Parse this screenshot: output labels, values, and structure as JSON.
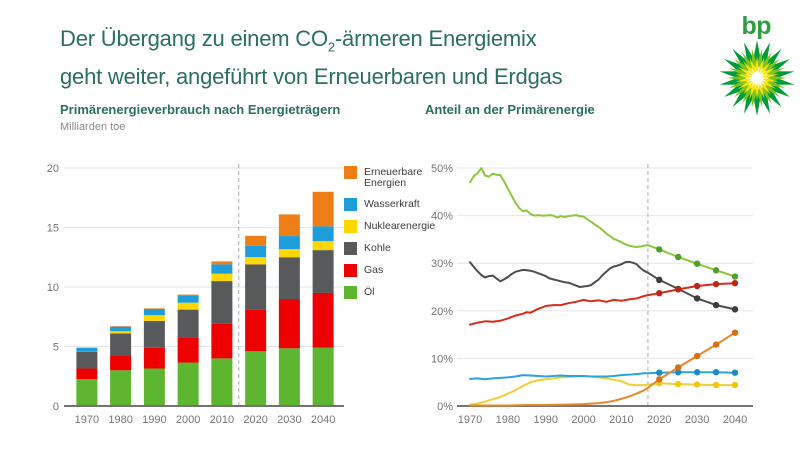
{
  "header": {
    "title_l1a": "Der Übergang zu einem CO",
    "title_sub": "2",
    "title_l1b": "-ärmeren Energiemix",
    "title_l2": "geht weiter, angeführt von Erneuerbaren und Erdgas"
  },
  "logo": {
    "wordmark": "bp",
    "colors": [
      "#009b3a",
      "#7fc31c",
      "#ffe400",
      "#ffffff"
    ]
  },
  "left_panel": {
    "title": "Primärenergieverbrauch nach Energieträgern",
    "unit": "Milliarden toe"
  },
  "right_panel": {
    "title": "Anteil an der Primärenergie"
  },
  "colors": {
    "title_teal": "#2b6e62",
    "axis_text": "#767676",
    "grid": "#e6e6e6",
    "baseline": "#737373",
    "divider": "#adadad",
    "legend_text": "#3d3d3d"
  },
  "chart_data": [
    {
      "type": "bar",
      "variant": "stacked",
      "title": "Primärenergieverbrauch nach Energieträgern",
      "ylabel": "Milliarden toe",
      "categories": [
        1970,
        1980,
        1990,
        2000,
        2010,
        2020,
        2030,
        2040
      ],
      "ylim": [
        0,
        20
      ],
      "yticks": [
        0,
        5,
        10,
        15,
        20
      ],
      "divider_x": 2015,
      "grid": true,
      "legend_position": "right",
      "series": [
        {
          "name": "Öl",
          "color": "#5eb52f",
          "values": [
            2.25,
            3.0,
            3.15,
            3.65,
            4.0,
            4.6,
            4.85,
            4.9
          ]
        },
        {
          "name": "Gas",
          "color": "#ee0000",
          "values": [
            0.9,
            1.25,
            1.75,
            2.1,
            2.9,
            3.5,
            4.1,
            4.6
          ]
        },
        {
          "name": "Kohle",
          "color": "#58595b",
          "values": [
            1.45,
            1.85,
            2.25,
            2.35,
            3.6,
            3.8,
            3.55,
            3.6
          ]
        },
        {
          "name": "Nuklearenergie",
          "color": "#ffd700",
          "values": [
            0.02,
            0.18,
            0.48,
            0.58,
            0.62,
            0.62,
            0.68,
            0.75
          ]
        },
        {
          "name": "Wasserkraft",
          "color": "#1d9dd9",
          "values": [
            0.28,
            0.4,
            0.52,
            0.6,
            0.78,
            0.95,
            1.1,
            1.25
          ]
        },
        {
          "name": "Erneuerbare Energien",
          "color": "#ef7d15",
          "values": [
            0.0,
            0.02,
            0.05,
            0.08,
            0.25,
            0.83,
            1.82,
            2.9
          ]
        }
      ]
    },
    {
      "type": "line",
      "title": "Anteil an der Primärenergie",
      "ylim": [
        0,
        50
      ],
      "yticks": [
        0,
        10,
        20,
        30,
        40,
        50
      ],
      "ytick_suffix": "%",
      "xticks": [
        1970,
        1980,
        1990,
        2000,
        2010,
        2020,
        2030,
        2040
      ],
      "divider_x": 2017,
      "grid": true,
      "marker_from": 2020,
      "marker_step": 5,
      "series": [
        {
          "name": "Nuklearenergie",
          "color": "#efcf35",
          "marker_color": "#f0c808",
          "points": [
            [
              1970,
              0.3
            ],
            [
              1972,
              0.5
            ],
            [
              1974,
              0.9
            ],
            [
              1976,
              1.4
            ],
            [
              1978,
              1.9
            ],
            [
              1980,
              2.6
            ],
            [
              1982,
              3.3
            ],
            [
              1984,
              4.2
            ],
            [
              1986,
              5.0
            ],
            [
              1988,
              5.4
            ],
            [
              1990,
              5.6
            ],
            [
              1992,
              5.8
            ],
            [
              1994,
              6.0
            ],
            [
              1996,
              6.1
            ],
            [
              1998,
              6.2
            ],
            [
              2000,
              6.3
            ],
            [
              2002,
              6.2
            ],
            [
              2004,
              6.0
            ],
            [
              2006,
              5.8
            ],
            [
              2008,
              5.5
            ],
            [
              2010,
              5.2
            ],
            [
              2012,
              4.5
            ],
            [
              2014,
              4.4
            ],
            [
              2016,
              4.4
            ],
            [
              2017,
              4.5
            ],
            [
              2020,
              4.8
            ],
            [
              2025,
              4.6
            ],
            [
              2030,
              4.5
            ],
            [
              2035,
              4.4
            ],
            [
              2040,
              4.4
            ]
          ]
        },
        {
          "name": "Wasserkraft",
          "color": "#2ba3dc",
          "marker_color": "#1b8cc4",
          "points": [
            [
              1970,
              5.7
            ],
            [
              1972,
              5.8
            ],
            [
              1974,
              5.6
            ],
            [
              1976,
              5.8
            ],
            [
              1978,
              5.9
            ],
            [
              1980,
              6.0
            ],
            [
              1982,
              6.2
            ],
            [
              1984,
              6.5
            ],
            [
              1986,
              6.4
            ],
            [
              1988,
              6.3
            ],
            [
              1990,
              6.2
            ],
            [
              1992,
              6.3
            ],
            [
              1994,
              6.4
            ],
            [
              1996,
              6.3
            ],
            [
              1998,
              6.3
            ],
            [
              2000,
              6.3
            ],
            [
              2002,
              6.2
            ],
            [
              2004,
              6.2
            ],
            [
              2006,
              6.2
            ],
            [
              2008,
              6.3
            ],
            [
              2010,
              6.5
            ],
            [
              2012,
              6.6
            ],
            [
              2014,
              6.7
            ],
            [
              2016,
              6.9
            ],
            [
              2017,
              6.9
            ],
            [
              2020,
              7.0
            ],
            [
              2025,
              7.1
            ],
            [
              2030,
              7.1
            ],
            [
              2035,
              7.1
            ],
            [
              2040,
              7.0
            ]
          ]
        },
        {
          "name": "Kohle",
          "color": "#4d4d4f",
          "marker_color": "#3c3c3e",
          "points": [
            [
              1970,
              30.2
            ],
            [
              1971,
              29.2
            ],
            [
              1972,
              28.3
            ],
            [
              1973,
              27.5
            ],
            [
              1974,
              27.0
            ],
            [
              1975,
              27.3
            ],
            [
              1976,
              27.4
            ],
            [
              1977,
              26.8
            ],
            [
              1978,
              26.2
            ],
            [
              1979,
              26.6
            ],
            [
              1980,
              27.1
            ],
            [
              1981,
              27.7
            ],
            [
              1982,
              28.2
            ],
            [
              1983,
              28.4
            ],
            [
              1984,
              28.6
            ],
            [
              1985,
              28.5
            ],
            [
              1986,
              28.4
            ],
            [
              1987,
              28.2
            ],
            [
              1988,
              27.9
            ],
            [
              1989,
              27.6
            ],
            [
              1990,
              27.3
            ],
            [
              1991,
              26.8
            ],
            [
              1992,
              26.6
            ],
            [
              1993,
              26.4
            ],
            [
              1994,
              26.2
            ],
            [
              1995,
              26.0
            ],
            [
              1996,
              25.9
            ],
            [
              1997,
              25.6
            ],
            [
              1998,
              25.3
            ],
            [
              1999,
              25.0
            ],
            [
              2000,
              25.1
            ],
            [
              2001,
              25.2
            ],
            [
              2002,
              25.4
            ],
            [
              2003,
              26.0
            ],
            [
              2004,
              26.6
            ],
            [
              2005,
              27.5
            ],
            [
              2006,
              28.2
            ],
            [
              2007,
              28.9
            ],
            [
              2008,
              29.3
            ],
            [
              2009,
              29.5
            ],
            [
              2010,
              29.8
            ],
            [
              2011,
              30.2
            ],
            [
              2012,
              30.3
            ],
            [
              2013,
              30.1
            ],
            [
              2014,
              29.8
            ],
            [
              2015,
              29.0
            ],
            [
              2016,
              28.4
            ],
            [
              2017,
              28.0
            ],
            [
              2020,
              26.5
            ],
            [
              2025,
              24.6
            ],
            [
              2030,
              22.6
            ],
            [
              2035,
              21.2
            ],
            [
              2040,
              20.3
            ]
          ]
        },
        {
          "name": "Öl",
          "color": "#8dc63f",
          "marker_color": "#4e9e2d",
          "points": [
            [
              1970,
              47.0
            ],
            [
              1971,
              48.3
            ],
            [
              1972,
              48.9
            ],
            [
              1973,
              50.0
            ],
            [
              1974,
              48.4
            ],
            [
              1975,
              48.2
            ],
            [
              1976,
              48.8
            ],
            [
              1977,
              48.6
            ],
            [
              1978,
              48.5
            ],
            [
              1979,
              47.2
            ],
            [
              1980,
              45.6
            ],
            [
              1981,
              44.2
            ],
            [
              1982,
              42.7
            ],
            [
              1983,
              41.6
            ],
            [
              1984,
              40.9
            ],
            [
              1985,
              41.1
            ],
            [
              1986,
              40.3
            ],
            [
              1987,
              40.0
            ],
            [
              1988,
              40.1
            ],
            [
              1989,
              40.0
            ],
            [
              1990,
              40.0
            ],
            [
              1991,
              40.1
            ],
            [
              1992,
              40.0
            ],
            [
              1993,
              39.6
            ],
            [
              1994,
              39.9
            ],
            [
              1995,
              39.7
            ],
            [
              1996,
              39.9
            ],
            [
              1997,
              40.0
            ],
            [
              1998,
              40.1
            ],
            [
              1999,
              39.9
            ],
            [
              2000,
              39.8
            ],
            [
              2001,
              39.2
            ],
            [
              2002,
              38.7
            ],
            [
              2003,
              38.1
            ],
            [
              2004,
              37.6
            ],
            [
              2005,
              37.0
            ],
            [
              2006,
              36.2
            ],
            [
              2007,
              35.7
            ],
            [
              2008,
              35.1
            ],
            [
              2009,
              34.8
            ],
            [
              2010,
              34.4
            ],
            [
              2011,
              34.0
            ],
            [
              2012,
              33.7
            ],
            [
              2013,
              33.5
            ],
            [
              2014,
              33.4
            ],
            [
              2015,
              33.5
            ],
            [
              2016,
              33.7
            ],
            [
              2017,
              33.8
            ],
            [
              2020,
              32.9
            ],
            [
              2025,
              31.3
            ],
            [
              2030,
              29.9
            ],
            [
              2035,
              28.5
            ],
            [
              2040,
              27.2
            ]
          ]
        },
        {
          "name": "Gas",
          "color": "#d92b1c",
          "marker_color": "#b8281a",
          "points": [
            [
              1970,
              17.1
            ],
            [
              1972,
              17.5
            ],
            [
              1974,
              17.8
            ],
            [
              1976,
              17.7
            ],
            [
              1978,
              17.9
            ],
            [
              1980,
              18.4
            ],
            [
              1982,
              19.0
            ],
            [
              1984,
              19.4
            ],
            [
              1985,
              19.7
            ],
            [
              1986,
              19.6
            ],
            [
              1988,
              20.4
            ],
            [
              1990,
              21.0
            ],
            [
              1992,
              21.2
            ],
            [
              1994,
              21.2
            ],
            [
              1996,
              21.6
            ],
            [
              1998,
              21.9
            ],
            [
              2000,
              22.3
            ],
            [
              2002,
              22.0
            ],
            [
              2004,
              22.2
            ],
            [
              2006,
              21.9
            ],
            [
              2008,
              22.3
            ],
            [
              2010,
              22.1
            ],
            [
              2012,
              22.4
            ],
            [
              2014,
              22.6
            ],
            [
              2016,
              23.1
            ],
            [
              2017,
              23.3
            ],
            [
              2020,
              23.7
            ],
            [
              2025,
              24.5
            ],
            [
              2030,
              25.2
            ],
            [
              2035,
              25.6
            ],
            [
              2040,
              25.8
            ]
          ]
        },
        {
          "name": "Erneuerbare Energien",
          "color": "#e8872a",
          "marker_color": "#d96f14",
          "points": [
            [
              1970,
              0.1
            ],
            [
              1975,
              0.1
            ],
            [
              1980,
              0.1
            ],
            [
              1985,
              0.2
            ],
            [
              1990,
              0.2
            ],
            [
              1995,
              0.3
            ],
            [
              2000,
              0.4
            ],
            [
              2002,
              0.5
            ],
            [
              2004,
              0.6
            ],
            [
              2006,
              0.8
            ],
            [
              2008,
              1.1
            ],
            [
              2010,
              1.5
            ],
            [
              2012,
              2.0
            ],
            [
              2014,
              2.6
            ],
            [
              2016,
              3.3
            ],
            [
              2017,
              3.8
            ],
            [
              2020,
              5.6
            ],
            [
              2025,
              8.1
            ],
            [
              2030,
              10.5
            ],
            [
              2035,
              12.9
            ],
            [
              2040,
              15.4
            ]
          ]
        }
      ]
    }
  ]
}
